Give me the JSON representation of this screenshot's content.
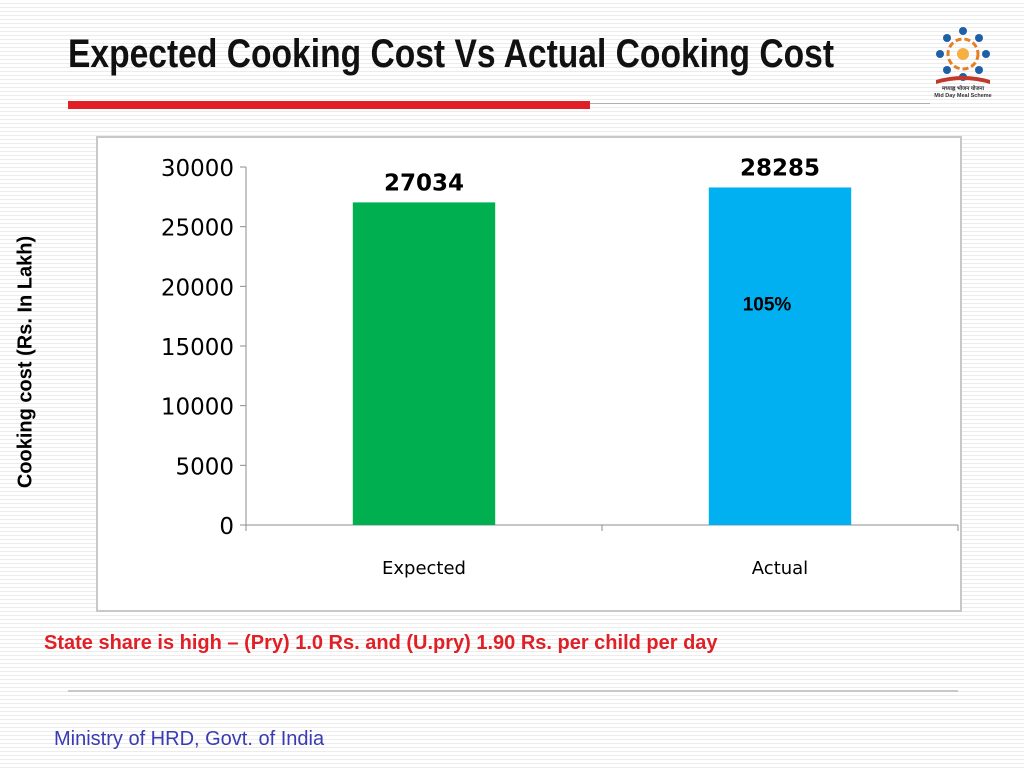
{
  "slide": {
    "title": "Expected Cooking Cost Vs Actual Cooking Cost",
    "footnote": "State share is high – (Pry) 1.0 Rs. and  (U.pry) 1.90 Rs. per child per day",
    "footer": "Ministry of HRD, Govt. of India"
  },
  "logo": {
    "caption_line1": "मध्याह्न भोजन योजना",
    "caption_line2": "Mid Day Meal Scheme"
  },
  "colors": {
    "title_rule": "#e01f26",
    "footnote_text": "#e01f26",
    "footer_text": "#3a3ab4",
    "expected_bar": "#00b050",
    "actual_bar": "#00b0f0"
  },
  "chart_data": {
    "type": "bar",
    "title": "",
    "categories": [
      "Expected",
      "Actual"
    ],
    "values": [
      27034,
      28285
    ],
    "data_labels": [
      "27034",
      "28285"
    ],
    "bar_colors": [
      "#00b050",
      "#00b0f0"
    ],
    "xlabel": "",
    "ylabel": "Cooking cost (Rs. In Lakh)",
    "ylim": [
      0,
      30000
    ],
    "yticks": [
      0,
      5000,
      10000,
      15000,
      20000,
      25000,
      30000
    ],
    "annotations": [
      {
        "category": "Actual",
        "text": "105%"
      }
    ],
    "grid": false,
    "legend": "none"
  }
}
